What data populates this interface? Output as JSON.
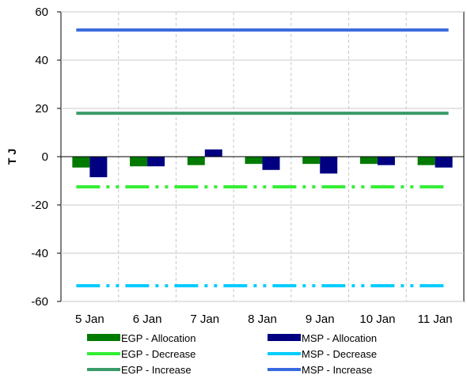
{
  "chart_data": {
    "type": "bar",
    "categories": [
      "5 Jan",
      "6 Jan",
      "7 Jan",
      "8 Jan",
      "9 Jan",
      "10 Jan",
      "11 Jan"
    ],
    "ylabel": "T J",
    "ylim": [
      -60,
      60
    ],
    "yticks": [
      60,
      40,
      20,
      0,
      -20,
      -40,
      -60
    ],
    "grid": true,
    "legend_position": "bottom",
    "series": [
      {
        "name": "EGP - Allocation",
        "type": "bar",
        "color": "#007a00",
        "values": [
          -4.5,
          -4,
          -3.5,
          -3,
          -3,
          -3,
          -3.5
        ]
      },
      {
        "name": "MSP - Allocation",
        "type": "bar",
        "color": "#000080",
        "values": [
          -8.5,
          -4,
          3,
          -5.5,
          -7,
          -3.5,
          -4.5
        ]
      },
      {
        "name": "EGP - Decrease",
        "type": "line",
        "style": "dash-dot-dot",
        "color": "#33ee33",
        "values": [
          -12.5,
          -12.5,
          -12.5,
          -12.5,
          -12.5,
          -12.5,
          -12.5
        ]
      },
      {
        "name": "MSP - Decrease",
        "type": "line",
        "style": "dash-dot-dot",
        "color": "#00ccff",
        "values": [
          -53.5,
          -53.5,
          -53.5,
          -53.5,
          -53.5,
          -53.5,
          -53.5
        ]
      },
      {
        "name": "EGP - Increase",
        "type": "line",
        "style": "solid",
        "color": "#3a9a6a",
        "values": [
          18,
          18,
          18,
          18,
          18,
          18,
          18
        ]
      },
      {
        "name": "MSP - Increase",
        "type": "line",
        "style": "solid",
        "color": "#3a6ae0",
        "values": [
          52.5,
          52.5,
          52.5,
          52.5,
          52.5,
          52.5,
          52.5
        ]
      }
    ]
  }
}
